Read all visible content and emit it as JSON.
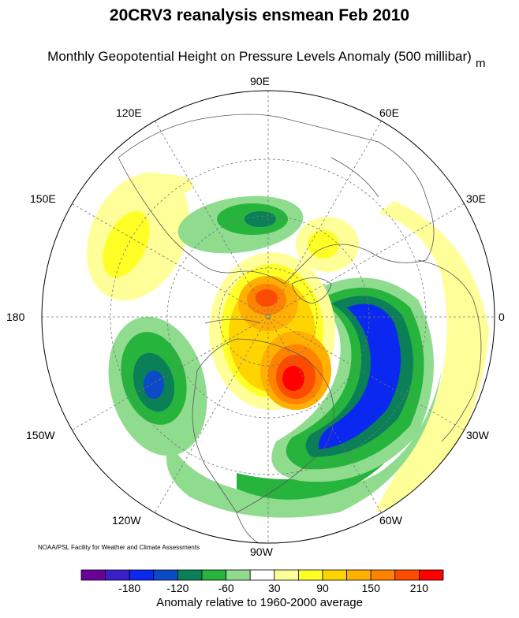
{
  "title": "20CRV3 reanalysis ensmean Feb 2010",
  "subtitle": "Monthly Geopotential Height on Pressure Levels Anomaly (500 millibar)",
  "units": "m",
  "credit": "NOAA/PSL Facility for Weather and Climate Assessments",
  "longitude_labels": [
    "90E",
    "60E",
    "30E",
    "0",
    "30W",
    "60W",
    "90W",
    "120W",
    "150W",
    "180",
    "150E",
    "120E"
  ],
  "colorbar": {
    "title": "Anomaly relative to 1960-2000 average",
    "colors": [
      "#6a0097",
      "#3c1ec8",
      "#0a28f0",
      "#0c4bc8",
      "#0a7f58",
      "#27b43c",
      "#8fdc8f",
      "#ffffff",
      "#ffff99",
      "#ffff26",
      "#ffd400",
      "#ffb000",
      "#ff8200",
      "#ff4b00",
      "#ff0000"
    ],
    "tick_labels": [
      "-180",
      "-120",
      "-60",
      "30",
      "90",
      "150",
      "210"
    ]
  },
  "projection": "polar stereographic, north pole"
}
